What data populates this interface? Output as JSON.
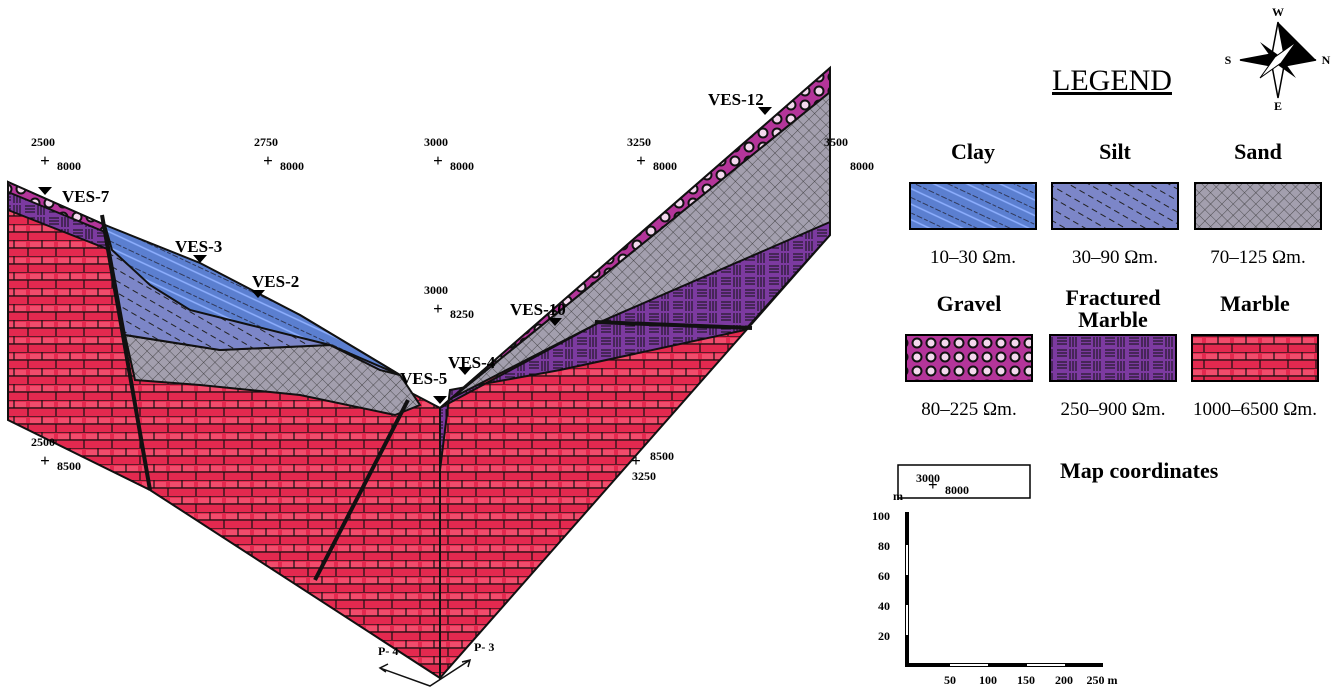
{
  "compass": {
    "north": "N",
    "south": "S",
    "east": "E",
    "west": "W"
  },
  "legend": {
    "title": "LEGEND",
    "items": [
      {
        "name": "Clay",
        "resistivity": "10–30 Ωm."
      },
      {
        "name": "Silt",
        "resistivity": "30–90 Ωm."
      },
      {
        "name": "Sand",
        "resistivity": "70–125 Ωm."
      },
      {
        "name": "Gravel",
        "resistivity": "80–225 Ωm."
      },
      {
        "name": "Fractured Marble",
        "resistivity": "250–900 Ωm."
      },
      {
        "name": "Marble",
        "resistivity": "1000–6500 Ωm."
      }
    ],
    "map_coordinates": {
      "x": "3000",
      "y": "8000",
      "label": "Map coordinates"
    }
  },
  "ves": [
    "VES-7",
    "VES-3",
    "VES-2",
    "VES-10",
    "VES-4",
    "VES-5",
    "VES-12"
  ],
  "coordinates": [
    {
      "x": "2500",
      "y": "8000"
    },
    {
      "x": "2750",
      "y": "8000"
    },
    {
      "x": "3000",
      "y": "8000"
    },
    {
      "x": "3250",
      "y": "8000"
    },
    {
      "x": "3500",
      "y": "8000"
    },
    {
      "x": "3000",
      "y": "8250"
    },
    {
      "x": "2500",
      "y": "8500"
    },
    {
      "x": "3250",
      "y": "8500"
    }
  ],
  "scale": {
    "unit": "m",
    "yticks": [
      "100",
      "80",
      "60",
      "40",
      "20"
    ],
    "xticks": [
      "50",
      "100",
      "150",
      "200",
      "250 m"
    ]
  },
  "profiles": [
    "P- 4",
    "P- 3"
  ]
}
